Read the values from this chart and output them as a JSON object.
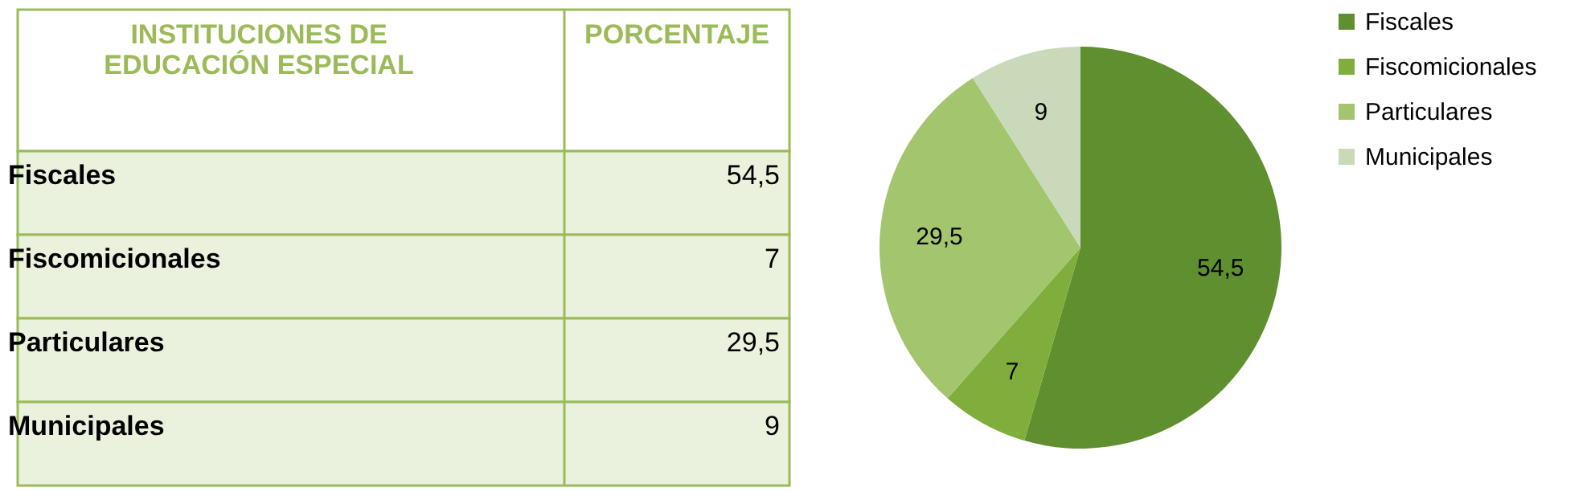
{
  "chart_data": {
    "type": "pie",
    "categories": [
      "Fiscales",
      "Fiscomicionales",
      "Particulares",
      "Municipales"
    ],
    "values": [
      54.5,
      7,
      29.5,
      9
    ],
    "colors": [
      "#5f8f2e",
      "#7fae3c",
      "#a3c56e",
      "#c9d9b9"
    ],
    "value_labels": [
      "54,5",
      "7",
      "29,5",
      "9"
    ],
    "annotations": [
      "INSTITUCIONES DE\nEDUCACIÓN ESPECIAL",
      "PORCENTAJE"
    ],
    "legend": "right"
  }
}
